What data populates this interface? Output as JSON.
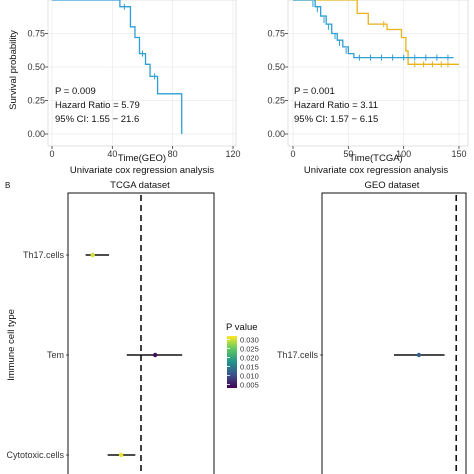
{
  "figure": {
    "panel_b_label": "B"
  },
  "chart_data": [
    {
      "type": "line",
      "subtype": "kaplan-meier",
      "xlabel": "Time(GEO)",
      "ylabel": "Survival probability",
      "title_below": "Univariate cox regression analysis",
      "xlim": [
        0,
        120
      ],
      "ylim": [
        0,
        1
      ],
      "x_ticks": [
        "0",
        "40",
        "80",
        "120"
      ],
      "y_ticks": [
        "0.00",
        "0.25",
        "0.50",
        "0.75"
      ],
      "grid": true,
      "annotations": [
        "P = 0.009",
        "Hazard Ratio = 5.79",
        "95% CI: 1.55 − 21.6"
      ],
      "colors": {
        "primary": "#2e9fd6"
      },
      "series": [
        {
          "color": "#2e9fd6",
          "steps": [
            [
              0,
              1.0
            ],
            [
              40,
              1.0
            ],
            [
              45,
              0.95
            ],
            [
              52,
              0.8
            ],
            [
              55,
              0.72
            ],
            [
              58,
              0.6
            ],
            [
              62,
              0.52
            ],
            [
              65,
              0.43
            ],
            [
              70,
              0.3
            ],
            [
              86,
              0.3
            ],
            [
              86,
              0.0
            ]
          ],
          "censors": [
            [
              48,
              0.95
            ],
            [
              60,
              0.6
            ],
            [
              68,
              0.43
            ]
          ]
        }
      ]
    },
    {
      "type": "line",
      "subtype": "kaplan-meier",
      "xlabel": "Time(TCGA)",
      "ylabel": "",
      "title_below": "Univariate cox regression analysis",
      "xlim": [
        0,
        150
      ],
      "ylim": [
        0,
        1
      ],
      "x_ticks": [
        "0",
        "50",
        "100",
        "150"
      ],
      "y_ticks": [
        "0.00",
        "0.25",
        "0.50",
        "0.75"
      ],
      "grid": true,
      "annotations": [
        "P = 0.001",
        "Hazard Ratio = 3.11",
        "95% CI: 1.57 − 6.15"
      ],
      "colors": {
        "blue": "#2e9fd6",
        "yellow": "#e8b21b"
      },
      "series": [
        {
          "color": "#e8b21b",
          "steps": [
            [
              0,
              1.0
            ],
            [
              55,
              1.0
            ],
            [
              58,
              0.9
            ],
            [
              68,
              0.9
            ],
            [
              68,
              0.82
            ],
            [
              80,
              0.82
            ],
            [
              85,
              0.78
            ],
            [
              95,
              0.78
            ],
            [
              98,
              0.72
            ],
            [
              102,
              0.62
            ],
            [
              104,
              0.52
            ],
            [
              150,
              0.52
            ]
          ],
          "censors": [
            [
              82,
              0.82
            ],
            [
              110,
              0.52
            ],
            [
              118,
              0.52
            ],
            [
              126,
              0.52
            ],
            [
              134,
              0.52
            ],
            [
              140,
              0.52
            ]
          ]
        },
        {
          "color": "#2e9fd6",
          "steps": [
            [
              0,
              1.0
            ],
            [
              15,
              1.0
            ],
            [
              20,
              0.95
            ],
            [
              25,
              0.88
            ],
            [
              30,
              0.82
            ],
            [
              35,
              0.75
            ],
            [
              40,
              0.7
            ],
            [
              45,
              0.65
            ],
            [
              50,
              0.6
            ],
            [
              55,
              0.57
            ],
            [
              145,
              0.57
            ]
          ],
          "censors": [
            [
              18,
              0.97
            ],
            [
              22,
              0.93
            ],
            [
              28,
              0.85
            ],
            [
              32,
              0.8
            ],
            [
              38,
              0.73
            ],
            [
              42,
              0.68
            ],
            [
              48,
              0.62
            ],
            [
              60,
              0.57
            ],
            [
              70,
              0.57
            ],
            [
              80,
              0.57
            ],
            [
              90,
              0.57
            ],
            [
              100,
              0.57
            ],
            [
              110,
              0.57
            ],
            [
              120,
              0.57
            ],
            [
              130,
              0.57
            ],
            [
              140,
              0.57
            ]
          ]
        }
      ]
    },
    {
      "type": "forest",
      "title": "TCGA dataset",
      "ylabel": "Immune cell type",
      "categories": [
        "Th17.cells",
        "Tem",
        "Cytotoxic.cells"
      ],
      "reference_line": 1,
      "rows": [
        {
          "label": "Th17.cells",
          "lower": 0.22,
          "est": 0.32,
          "upper": 0.55,
          "p": 0.03
        },
        {
          "label": "Tem",
          "lower": 0.8,
          "est": 1.2,
          "upper": 1.58,
          "p": 0.004
        },
        {
          "label": "Cytotoxic.cells",
          "lower": 0.53,
          "est": 0.72,
          "upper": 0.92,
          "p": 0.031
        }
      ],
      "legend": {
        "title": "P value",
        "ticks": [
          "0.030",
          "0.025",
          "0.020",
          "0.015",
          "0.010",
          "0.005"
        ],
        "min": 0.003,
        "max": 0.032
      }
    },
    {
      "type": "forest",
      "title": "GEO dataset",
      "categories": [
        "Th17.cells"
      ],
      "reference_line": 1,
      "rows": [
        {
          "label": "Th17.cells",
          "lower": 0.2,
          "est": 0.52,
          "upper": 0.85,
          "p": 0.012
        }
      ]
    }
  ]
}
